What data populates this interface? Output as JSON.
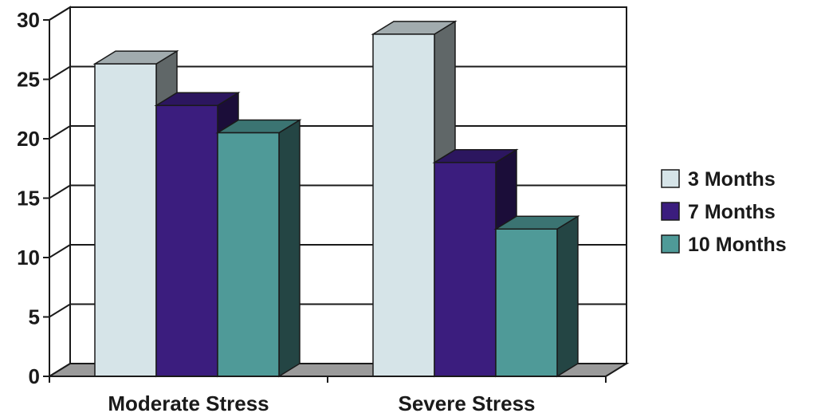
{
  "chart_data": {
    "type": "bar",
    "categories": [
      "Moderate Stress",
      "Severe Stress"
    ],
    "series": [
      {
        "name": "3 Months",
        "values": [
          26.3,
          28.8
        ],
        "color": "#d6e4e8"
      },
      {
        "name": "7 Months",
        "values": [
          22.8,
          18.0
        ],
        "color": "#3b1d7e"
      },
      {
        "name": "10 Months",
        "values": [
          20.5,
          12.4
        ],
        "color": "#4f9a98"
      }
    ],
    "y_ticks": [
      "0",
      "5",
      "10",
      "15",
      "20",
      "25",
      "30"
    ],
    "ylim": [
      0,
      30
    ],
    "grid": true,
    "legend_position": "right",
    "style": "3d-clustered-bar"
  }
}
